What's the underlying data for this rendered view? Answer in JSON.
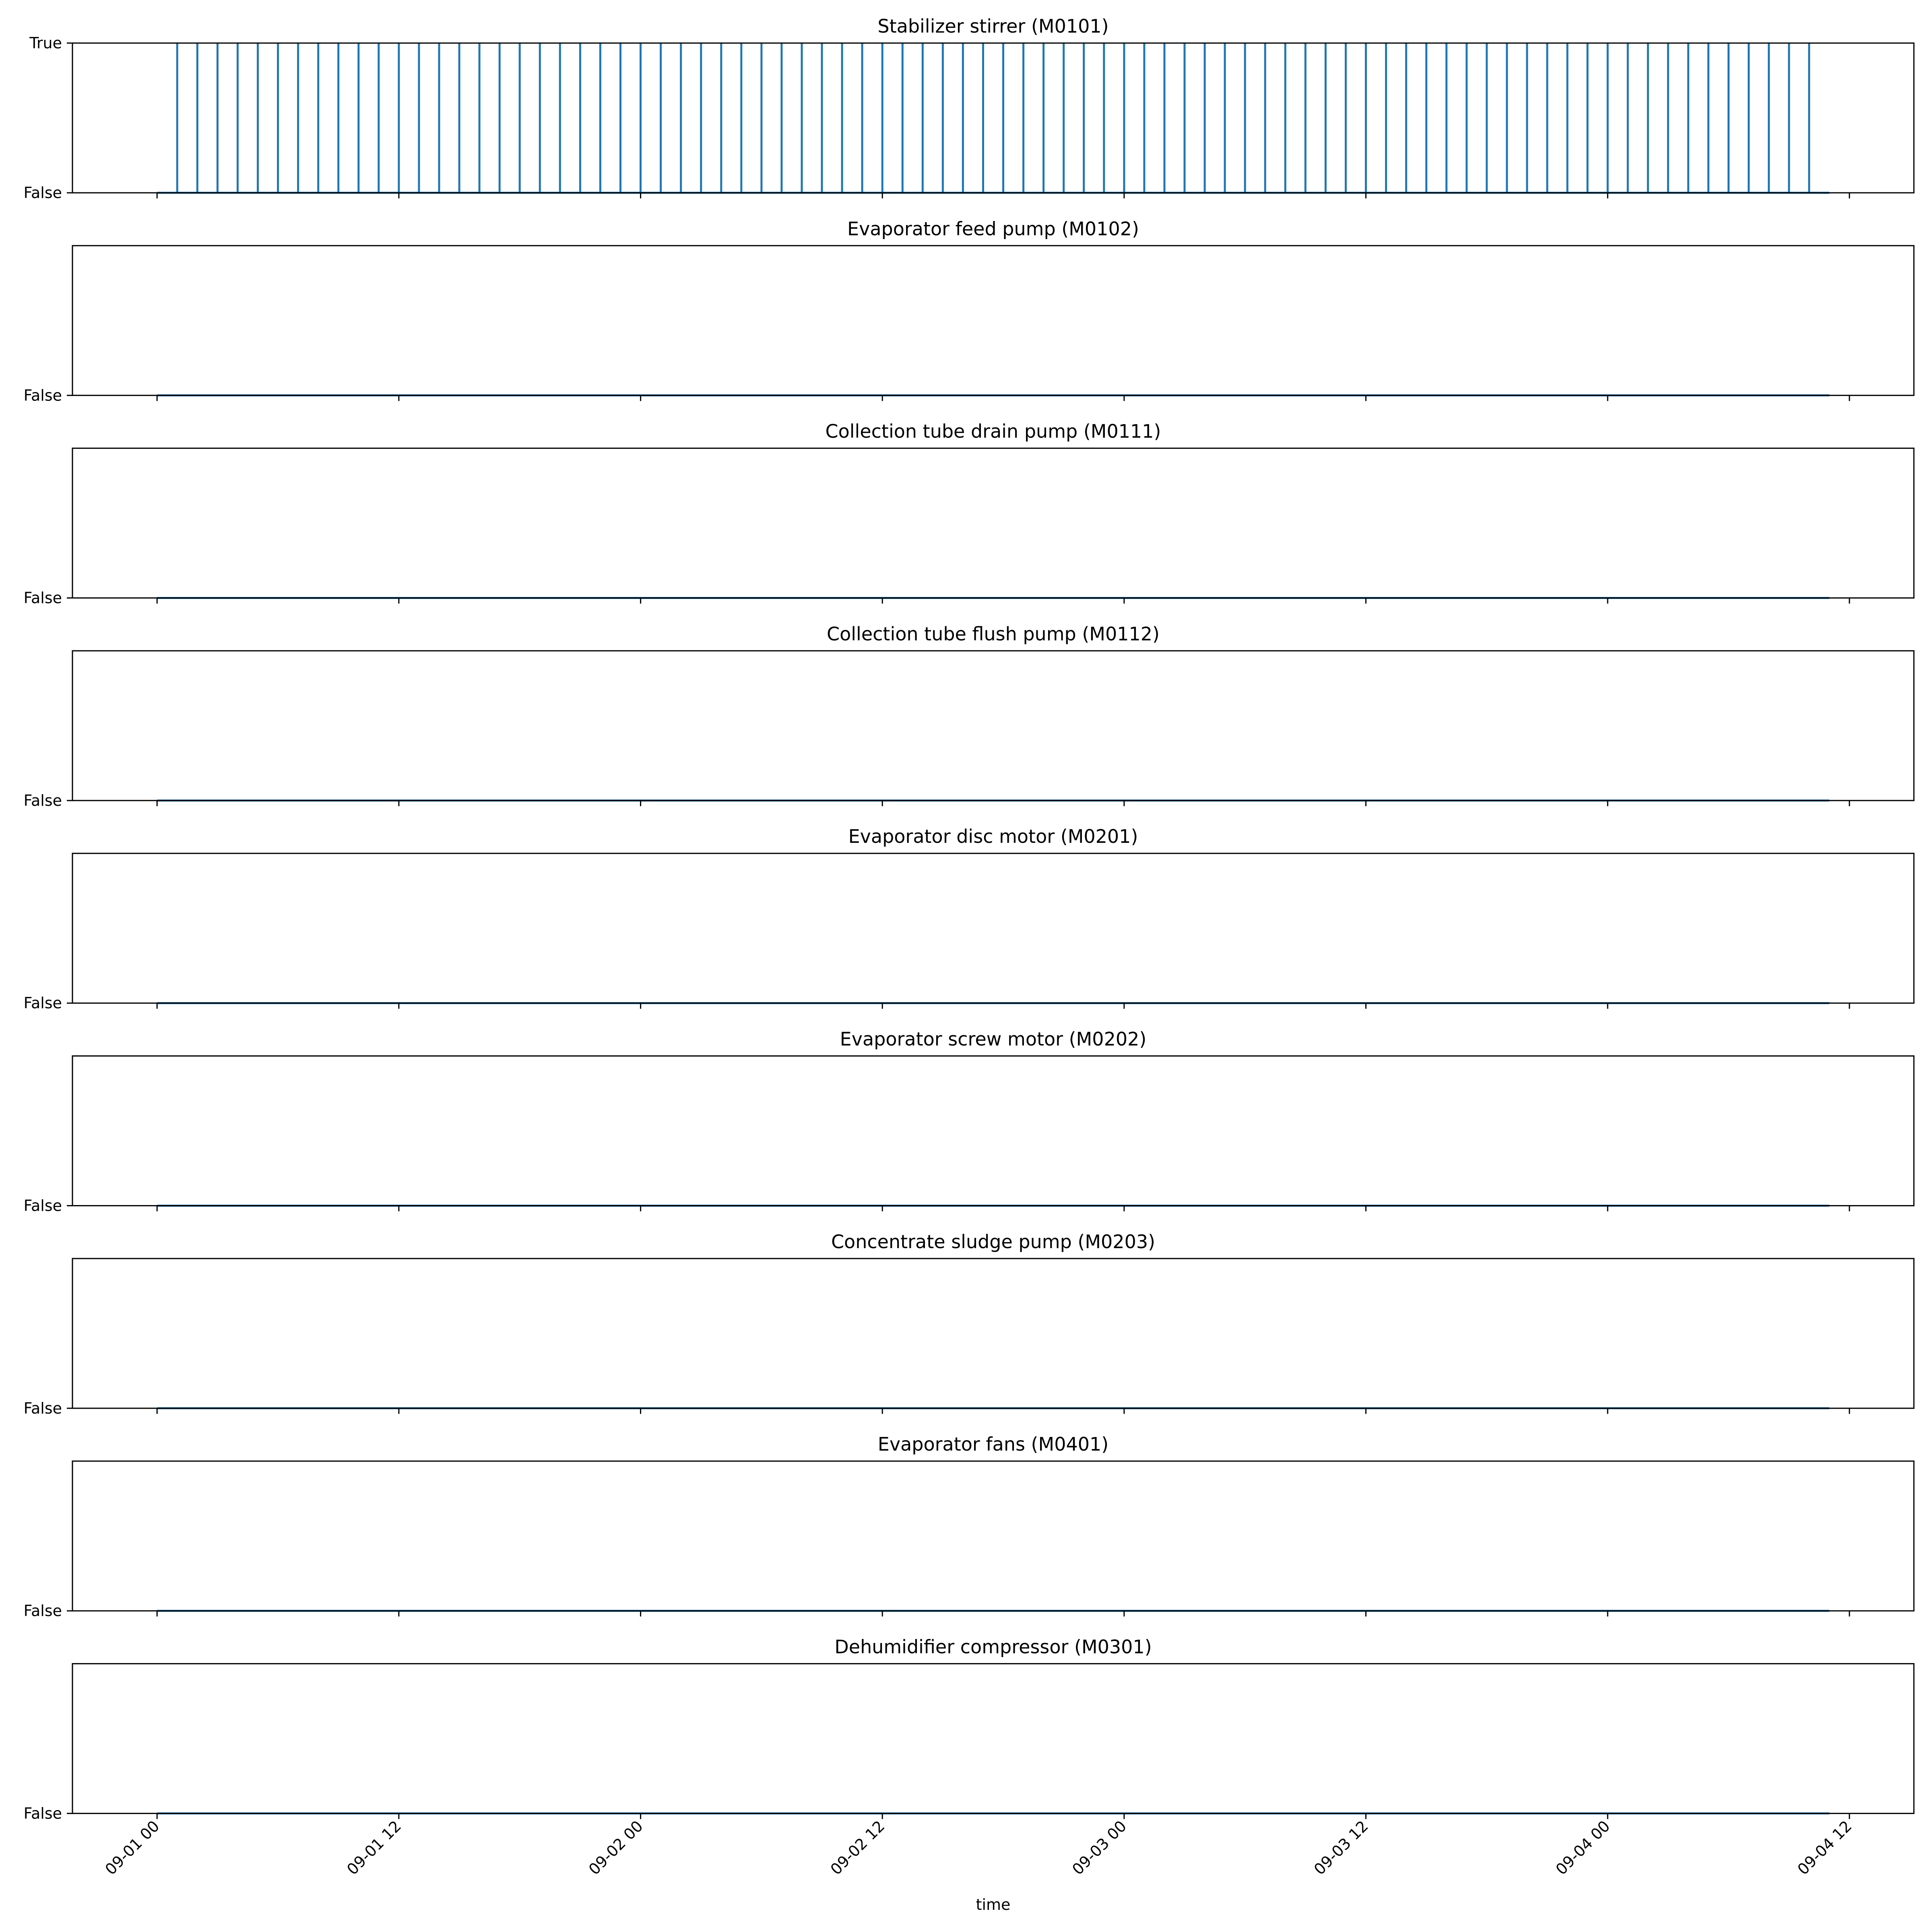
{
  "chart_data": {
    "type": "line",
    "drawstyle": "steps",
    "xlabel": "time",
    "x_ticks": [
      "09-01 00",
      "09-01 12",
      "09-02 00",
      "09-02 12",
      "09-03 00",
      "09-03 12",
      "09-04 00",
      "09-04 12"
    ],
    "x_tick_hours": [
      0,
      12,
      24,
      36,
      48,
      60,
      72,
      84
    ],
    "xlim_hours": [
      -4.2,
      87.2
    ],
    "data_range_hours": [
      0,
      83
    ],
    "y_ticks": [
      "False",
      "True"
    ],
    "series_color": "#1f77b4",
    "grid": false,
    "legend": "none",
    "panels": [
      {
        "title": "Stabilizer stirrer (M0101)",
        "y_tick_labels": [
          "False",
          "True"
        ],
        "pulse_period_hours": 1,
        "pulse_hours": [
          1,
          2,
          3,
          4,
          5,
          6,
          7,
          8,
          9,
          10,
          11,
          12,
          13,
          14,
          15,
          16,
          17,
          18,
          19,
          20,
          21,
          22,
          23,
          24,
          25,
          26,
          27,
          28,
          29,
          30,
          31,
          32,
          33,
          34,
          35,
          36,
          37,
          38,
          39,
          40,
          41,
          42,
          43,
          44,
          45,
          46,
          47,
          48,
          49,
          50,
          51,
          52,
          53,
          54,
          55,
          56,
          57,
          58,
          59,
          60,
          61,
          62,
          63,
          64,
          65,
          66,
          67,
          68,
          69,
          70,
          71,
          72,
          73,
          74,
          75,
          76,
          77,
          78,
          79,
          80,
          81,
          82
        ]
      },
      {
        "title": "Evaporator feed pump (M0102)",
        "y_tick_labels": [
          "False"
        ],
        "pulse_hours": []
      },
      {
        "title": "Collection tube drain pump (M0111)",
        "y_tick_labels": [
          "False"
        ],
        "pulse_hours": []
      },
      {
        "title": "Collection tube flush pump (M0112)",
        "y_tick_labels": [
          "False"
        ],
        "pulse_hours": []
      },
      {
        "title": "Evaporator disc motor (M0201)",
        "y_tick_labels": [
          "False"
        ],
        "pulse_hours": []
      },
      {
        "title": "Evaporator screw motor (M0202)",
        "y_tick_labels": [
          "False"
        ],
        "pulse_hours": []
      },
      {
        "title": "Concentrate sludge pump (M0203)",
        "y_tick_labels": [
          "False"
        ],
        "pulse_hours": []
      },
      {
        "title": "Evaporator fans (M0401)",
        "y_tick_labels": [
          "False"
        ],
        "pulse_hours": []
      },
      {
        "title": "Dehumidifier compressor (M0301)",
        "y_tick_labels": [
          "False"
        ],
        "pulse_hours": []
      }
    ]
  }
}
